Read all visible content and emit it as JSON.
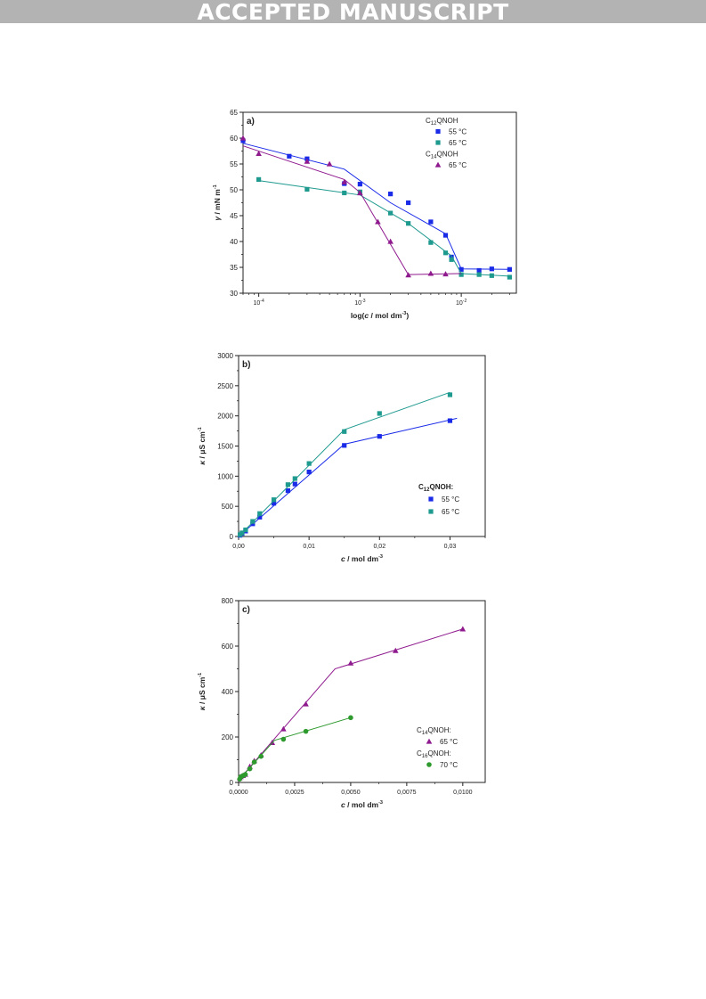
{
  "banner": "ACCEPTED MANUSCRIPT",
  "colors": {
    "blue": "#1a2be8",
    "teal": "#1f9a8f",
    "purple": "#8f1a8e",
    "green": "#2e9a2e",
    "banner_bg": "#b3b3b3"
  },
  "chart_data": [
    {
      "id": "a",
      "type": "scatter",
      "panel_label": "a)",
      "xlabel": "log(c / mol dm-3)",
      "ylabel": "γ / mN m-1",
      "xscale": "log",
      "xlim": [
        7e-05,
        0.035
      ],
      "ylim": [
        30,
        65
      ],
      "xticks": [
        0.0001,
        0.001,
        0.01
      ],
      "xtick_labels": [
        "10-4",
        "10-3",
        "10-2"
      ],
      "yticks": [
        30,
        35,
        40,
        45,
        50,
        55,
        60,
        65
      ],
      "legend_position": "top-right",
      "legend": [
        {
          "kind": "header",
          "text": "C12QNOH"
        },
        {
          "kind": "entry",
          "series": 0,
          "text": "55 °C"
        },
        {
          "kind": "entry",
          "series": 1,
          "text": "65 °C"
        },
        {
          "kind": "header",
          "text": "C14QNOH"
        },
        {
          "kind": "entry",
          "series": 2,
          "text": "65 °C"
        }
      ],
      "series": [
        {
          "marker": "square",
          "color": "#1a2be8",
          "points": [
            [
              7e-05,
              59.5
            ],
            [
              0.0002,
              56.5
            ],
            [
              0.0003,
              56.0
            ],
            [
              0.0007,
              51.2
            ],
            [
              0.001,
              51.1
            ],
            [
              0.002,
              49.2
            ],
            [
              0.003,
              47.5
            ],
            [
              0.005,
              43.8
            ],
            [
              0.007,
              41.2
            ],
            [
              0.008,
              37.0
            ],
            [
              0.01,
              34.6
            ],
            [
              0.015,
              34.4
            ],
            [
              0.02,
              34.7
            ],
            [
              0.03,
              34.6
            ]
          ],
          "fit": [
            [
              7e-05,
              59.0
            ],
            [
              0.0007,
              54.0
            ],
            [
              0.002,
              47.5
            ],
            [
              0.007,
              41.5
            ],
            [
              0.01,
              34.7
            ],
            [
              0.03,
              34.6
            ]
          ]
        },
        {
          "marker": "square",
          "color": "#1f9a8f",
          "points": [
            [
              0.0001,
              52.0
            ],
            [
              0.0003,
              50.1
            ],
            [
              0.0007,
              49.4
            ],
            [
              0.001,
              49.6
            ],
            [
              0.002,
              45.5
            ],
            [
              0.003,
              43.5
            ],
            [
              0.005,
              39.8
            ],
            [
              0.007,
              37.8
            ],
            [
              0.008,
              36.5
            ],
            [
              0.01,
              33.6
            ],
            [
              0.015,
              33.6
            ],
            [
              0.02,
              33.4
            ],
            [
              0.03,
              33.1
            ]
          ],
          "fit": [
            [
              0.0001,
              51.8
            ],
            [
              0.001,
              49.0
            ],
            [
              0.003,
              43.5
            ],
            [
              0.008,
              37.2
            ],
            [
              0.01,
              33.8
            ],
            [
              0.03,
              33.3
            ]
          ]
        },
        {
          "marker": "triangle",
          "color": "#8f1a8e",
          "points": [
            [
              7e-05,
              60.0
            ],
            [
              0.0001,
              57.0
            ],
            [
              0.0003,
              55.5
            ],
            [
              0.0005,
              55.0
            ],
            [
              0.0007,
              51.5
            ],
            [
              0.001,
              49.4
            ],
            [
              0.0015,
              43.8
            ],
            [
              0.002,
              40.0
            ],
            [
              0.003,
              33.5
            ],
            [
              0.005,
              33.8
            ],
            [
              0.007,
              33.7
            ]
          ],
          "fit": [
            [
              7e-05,
              58.5
            ],
            [
              0.0007,
              52.0
            ],
            [
              0.001,
              49.5
            ],
            [
              0.003,
              33.6
            ],
            [
              0.01,
              33.8
            ]
          ]
        }
      ]
    },
    {
      "id": "b",
      "type": "scatter",
      "panel_label": "b)",
      "xlabel": "c / mol dm-3",
      "ylabel": "κ / μS cm-1",
      "xlim": [
        0,
        0.035
      ],
      "ylim": [
        0,
        3000
      ],
      "xticks": [
        0,
        0.01,
        0.02,
        0.03
      ],
      "xtick_labels": [
        "0,00",
        "0,01",
        "0,02",
        "0,03"
      ],
      "yticks": [
        0,
        500,
        1000,
        1500,
        2000,
        2500,
        3000
      ],
      "legend_position": "lower-right",
      "legend": [
        {
          "kind": "header",
          "text": "C12QNOH:"
        },
        {
          "kind": "entry",
          "series": 0,
          "text": "55 °C"
        },
        {
          "kind": "entry",
          "series": 1,
          "text": "65 °C"
        }
      ],
      "series": [
        {
          "marker": "square",
          "color": "#1a2be8",
          "points": [
            [
              0.0002,
              20
            ],
            [
              0.0005,
              50
            ],
            [
              0.001,
              90
            ],
            [
              0.002,
              210
            ],
            [
              0.003,
              320
            ],
            [
              0.005,
              550
            ],
            [
              0.007,
              760
            ],
            [
              0.008,
              870
            ],
            [
              0.01,
              1070
            ],
            [
              0.015,
              1510
            ],
            [
              0.02,
              1660
            ],
            [
              0.03,
              1920
            ]
          ],
          "fit": [
            [
              0,
              0
            ],
            [
              0.015,
              1530
            ],
            [
              0.031,
              1960
            ]
          ]
        },
        {
          "marker": "square",
          "color": "#1f9a8f",
          "points": [
            [
              0.0002,
              30
            ],
            [
              0.0005,
              60
            ],
            [
              0.001,
              110
            ],
            [
              0.002,
              250
            ],
            [
              0.003,
              380
            ],
            [
              0.005,
              610
            ],
            [
              0.007,
              860
            ],
            [
              0.008,
              960
            ],
            [
              0.01,
              1210
            ],
            [
              0.015,
              1740
            ],
            [
              0.02,
              2040
            ],
            [
              0.03,
              2350
            ]
          ],
          "fit": [
            [
              0,
              0
            ],
            [
              0.015,
              1770
            ],
            [
              0.03,
              2390
            ]
          ]
        }
      ]
    },
    {
      "id": "c",
      "type": "scatter",
      "panel_label": "c)",
      "xlabel": "c / mol dm-3",
      "ylabel": "κ / μS cm-1",
      "xlim": [
        0,
        0.011
      ],
      "ylim": [
        0,
        800
      ],
      "xticks": [
        0,
        0.0025,
        0.005,
        0.0075,
        0.01
      ],
      "xtick_labels": [
        "0,0000",
        "0,0025",
        "0,0050",
        "0,0075",
        "0,0100"
      ],
      "yticks": [
        0,
        200,
        400,
        600,
        800
      ],
      "legend_position": "lower-right",
      "legend": [
        {
          "kind": "header",
          "text": "C14QNOH:"
        },
        {
          "kind": "entry",
          "series": 0,
          "text": "65 °C"
        },
        {
          "kind": "header",
          "text": "C16QNOH:"
        },
        {
          "kind": "entry",
          "series": 1,
          "text": "70 °C"
        }
      ],
      "series": [
        {
          "marker": "triangle",
          "color": "#8f1a8e",
          "points": [
            [
              5e-05,
              20
            ],
            [
              0.0001,
              25
            ],
            [
              0.0002,
              30
            ],
            [
              0.0003,
              35
            ],
            [
              0.0005,
              70
            ],
            [
              0.0007,
              95
            ],
            [
              0.001,
              120
            ],
            [
              0.0015,
              175
            ],
            [
              0.002,
              235
            ],
            [
              0.003,
              345
            ],
            [
              0.005,
              525
            ],
            [
              0.007,
              580
            ],
            [
              0.01,
              675
            ]
          ],
          "fit": [
            [
              0,
              10
            ],
            [
              0.0043,
              500
            ],
            [
              0.01,
              675
            ]
          ]
        },
        {
          "marker": "circle",
          "color": "#2e9a2e",
          "points": [
            [
              5e-05,
              15
            ],
            [
              0.0001,
              25
            ],
            [
              0.0002,
              30
            ],
            [
              0.0003,
              35
            ],
            [
              0.0005,
              60
            ],
            [
              0.0007,
              90
            ],
            [
              0.001,
              115
            ],
            [
              0.002,
              190
            ],
            [
              0.003,
              225
            ],
            [
              0.005,
              285
            ]
          ],
          "fit": [
            [
              0,
              10
            ],
            [
              0.0016,
              185
            ],
            [
              0.005,
              285
            ]
          ]
        }
      ]
    }
  ]
}
